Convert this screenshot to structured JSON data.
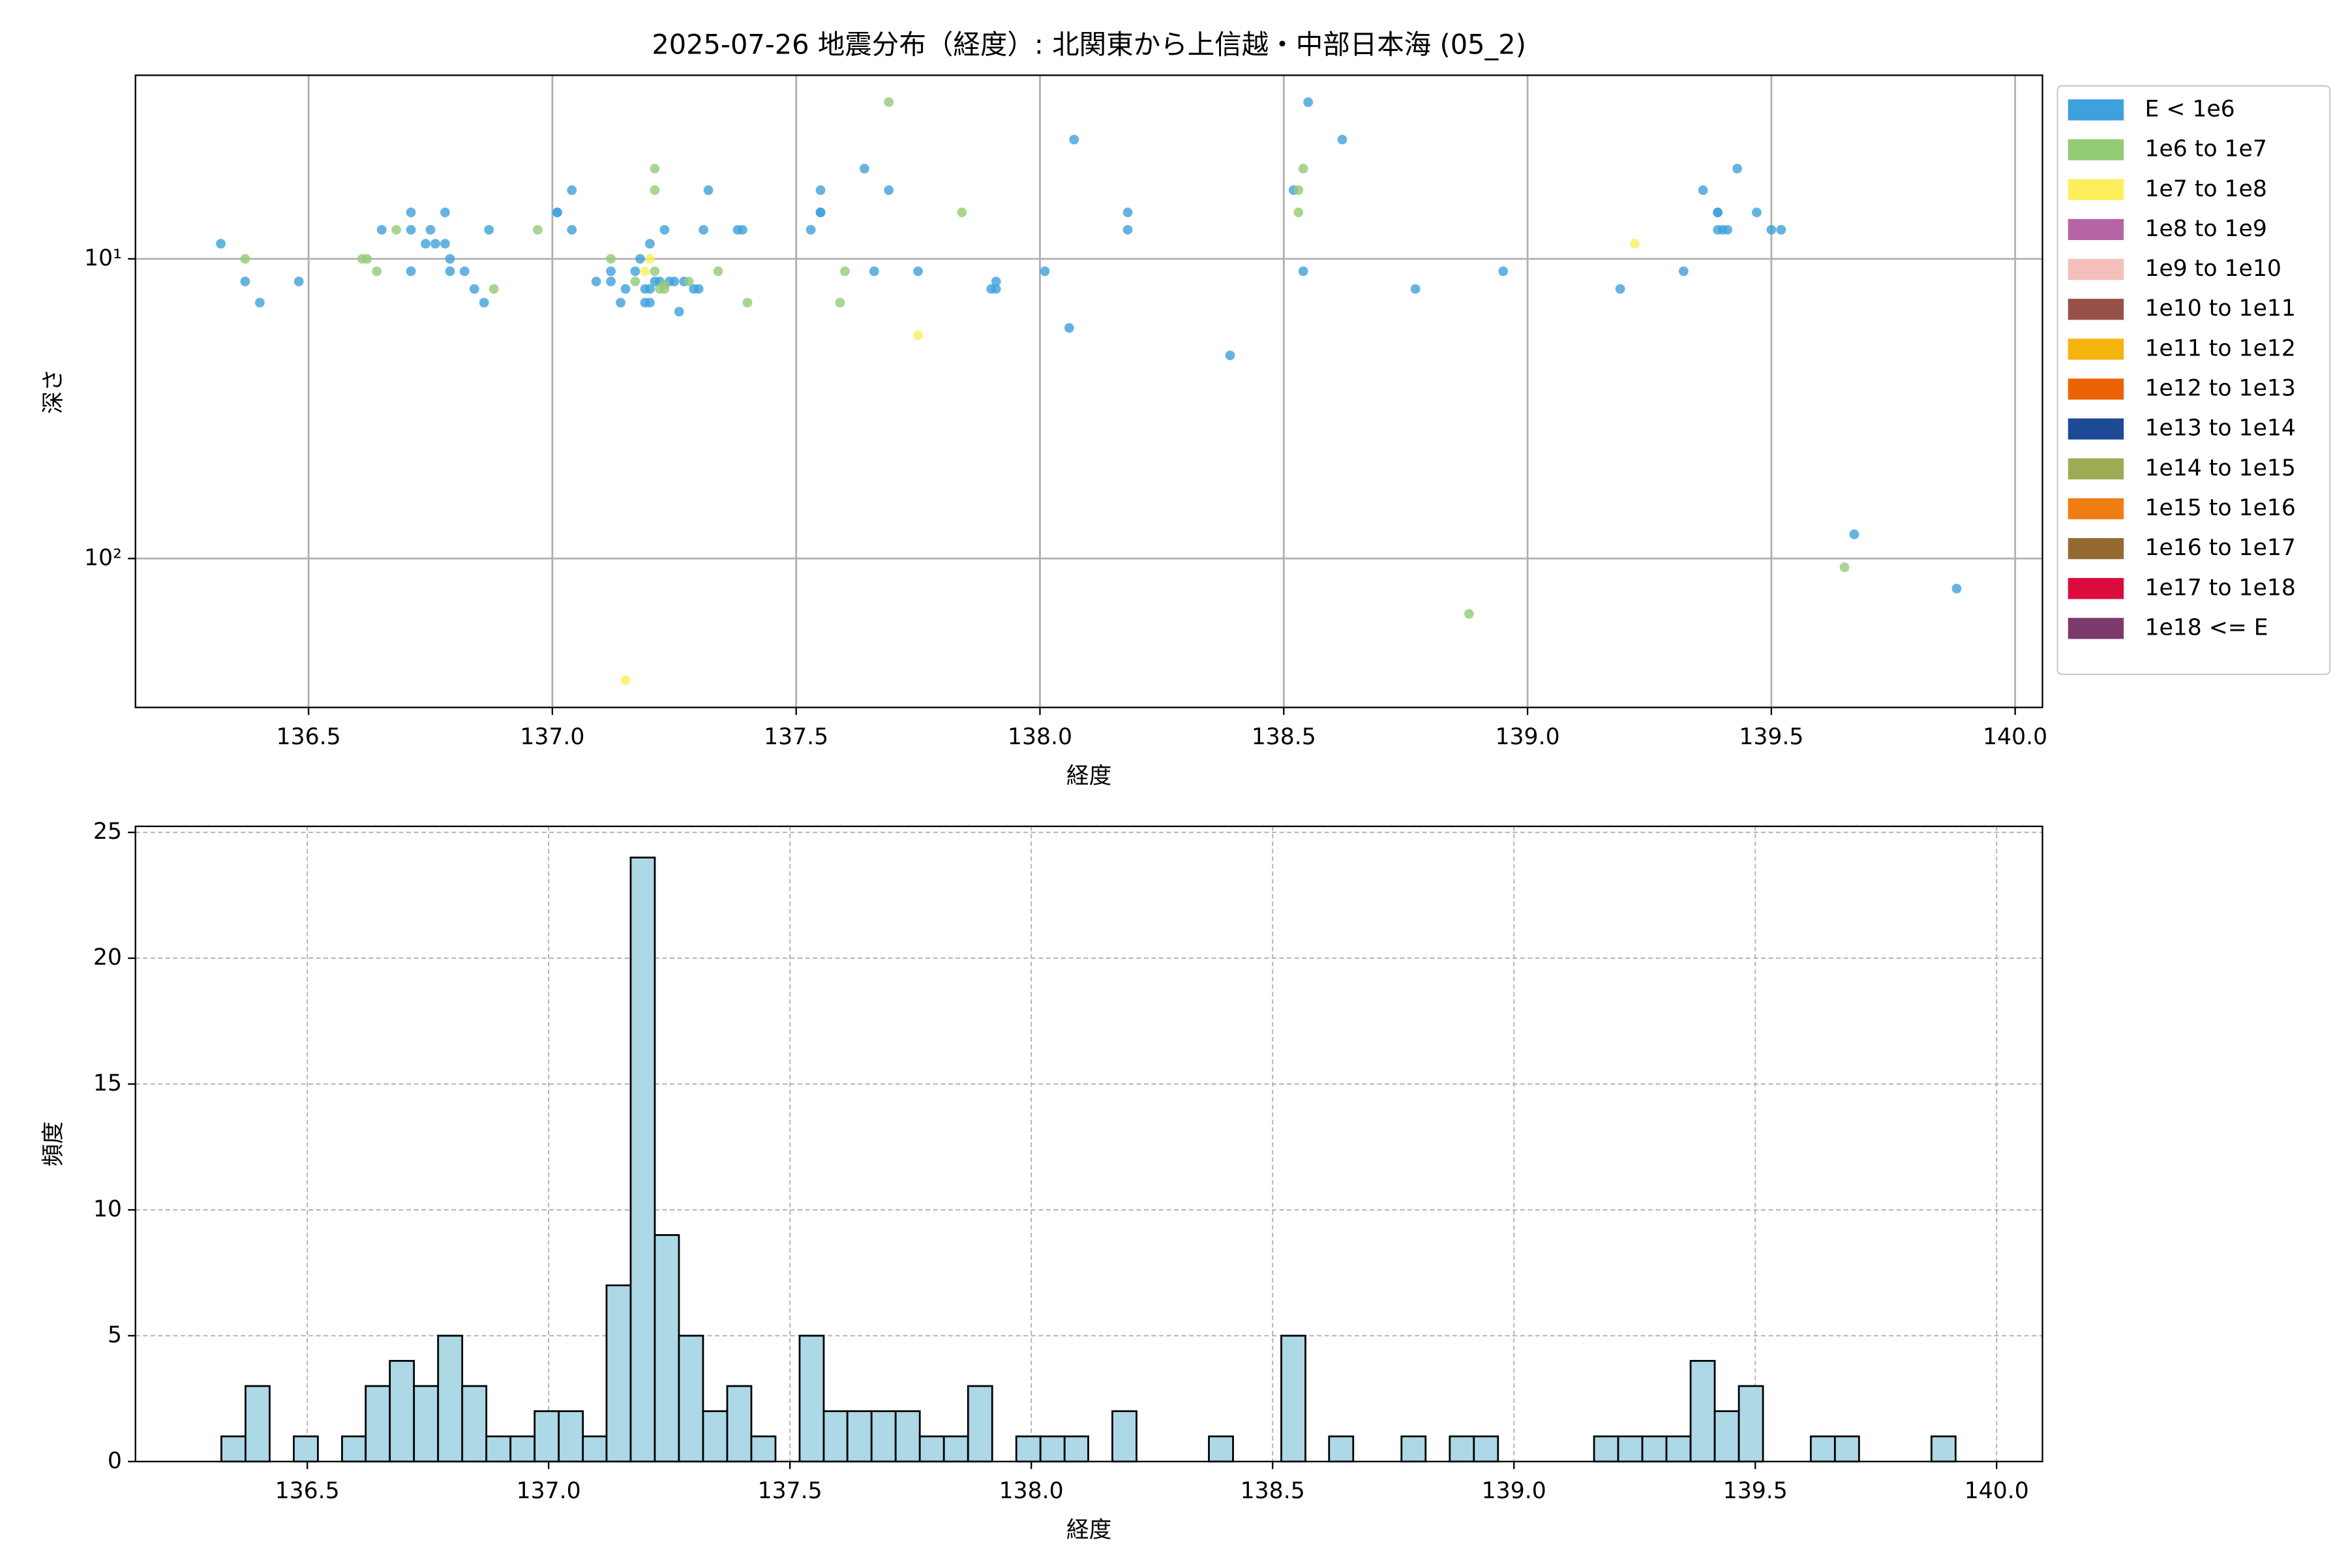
{
  "chart_data": [
    {
      "type": "scatter",
      "title": "2025-07-26 地震分布（経度）: 北関東から上信越・中部日本海 (05_2)",
      "x_label": "経度",
      "y_label": "深さ",
      "xlim": [
        136.145,
        140.056
      ],
      "xticks": [
        136.5,
        {
          "value": 137,
          "label": "137.0"
        },
        137.5,
        {
          "value": 138,
          "label": "138.0"
        },
        138.5,
        {
          "value": 139,
          "label": "139.0"
        },
        139.5,
        {
          "value": 140,
          "label": "140.0"
        }
      ],
      "ylim": [
        2.44,
        314
      ],
      "y_log": true,
      "y_inverted": true,
      "yticks": [
        {
          "value": 10,
          "label": "10¹"
        },
        {
          "value": 100,
          "label": "10²"
        }
      ],
      "grid": true,
      "legend": "outside right",
      "series": [
        {
          "name": "E < 1e6",
          "color": "#3ea0dc",
          "x": [
            136.32,
            136.37,
            136.4,
            136.48,
            136.65,
            136.71,
            136.71,
            136.71,
            136.74,
            136.75,
            136.76,
            136.78,
            136.78,
            136.79,
            136.79,
            136.82,
            136.84,
            136.86,
            136.87,
            137.01,
            137.01,
            137.04,
            137.04,
            137.09,
            137.12,
            137.12,
            137.14,
            137.15,
            137.17,
            137.18,
            137.19,
            137.19,
            137.2,
            137.2,
            137.2,
            137.21,
            137.22,
            137.24,
            137.25,
            137.23,
            137.26,
            137.27,
            137.29,
            137.3,
            137.31,
            137.32,
            137.38,
            137.39,
            137.53,
            137.55,
            137.55,
            137.55,
            137.64,
            137.66,
            137.69,
            137.75,
            137.9,
            137.91,
            137.91,
            138.01,
            138.06,
            138.07,
            138.18,
            138.18,
            138.39,
            138.52,
            138.54,
            138.55,
            138.62,
            138.77,
            138.95,
            139.19,
            139.32,
            139.36,
            139.39,
            139.39,
            139.39,
            139.4,
            139.41,
            139.43,
            139.47,
            139.5,
            139.52,
            139.67,
            139.88
          ],
          "values": [
            8.9,
            11.9,
            14,
            11.9,
            8,
            7,
            8,
            11,
            8.9,
            8,
            8.9,
            7,
            8.9,
            11,
            10,
            11,
            12.6,
            14,
            8,
            7,
            7,
            5.9,
            8,
            11.9,
            11,
            11.9,
            14,
            12.6,
            11,
            10,
            12.6,
            14,
            12.6,
            14,
            8.9,
            11.9,
            11.9,
            11.9,
            11.9,
            8,
            15,
            11.9,
            12.6,
            12.6,
            8,
            5.9,
            8,
            8,
            8,
            7,
            5.9,
            7,
            5,
            11,
            5.9,
            11,
            12.6,
            11.9,
            12.6,
            11,
            17,
            4,
            7,
            8,
            21,
            5.9,
            11,
            3,
            4,
            12.6,
            11,
            12.6,
            11,
            5.9,
            7,
            7,
            8,
            8,
            8,
            5,
            7,
            8,
            8,
            83,
            126
          ]
        },
        {
          "name": "1e6 to 1e7",
          "color": "#92cc74",
          "x": [
            136.37,
            136.61,
            136.62,
            136.64,
            136.68,
            136.88,
            136.97,
            137.12,
            137.17,
            137.21,
            137.21,
            137.21,
            137.22,
            137.23,
            137.23,
            137.28,
            137.34,
            137.4,
            137.59,
            137.6,
            137.69,
            137.84,
            138.53,
            138.53,
            138.54,
            138.88,
            139.65
          ],
          "values": [
            10,
            10,
            10,
            11,
            8,
            12.6,
            8,
            10,
            11.9,
            5,
            5.9,
            11,
            12.6,
            12.6,
            12.2,
            11.9,
            11,
            14,
            14,
            11,
            3,
            7,
            5.9,
            7,
            5,
            153,
            107
          ]
        },
        {
          "name": "1e7 to 1e8",
          "color": "#fdee5c",
          "x": [
            137.15,
            137.19,
            137.2,
            137.75,
            139.22
          ],
          "values": [
            255,
            11,
            10,
            18,
            8.9
          ]
        },
        {
          "name": "1e8 to 1e9",
          "color": "#b565a6",
          "x": [],
          "values": []
        },
        {
          "name": "1e9 to 1e10",
          "color": "#f4bfbb",
          "x": [],
          "values": []
        },
        {
          "name": "1e10 to 1e11",
          "color": "#975148",
          "x": [],
          "values": []
        },
        {
          "name": "1e11 to 1e12",
          "color": "#f6b40e",
          "x": [],
          "values": []
        },
        {
          "name": "1e12 to 1e13",
          "color": "#ec6306",
          "x": [],
          "values": []
        },
        {
          "name": "1e13 to 1e14",
          "color": "#1d4a94",
          "x": [],
          "values": []
        },
        {
          "name": "1e14 to 1e15",
          "color": "#9eab54",
          "x": [],
          "values": []
        },
        {
          "name": "1e15 to 1e16",
          "color": "#f07d13",
          "x": [],
          "values": []
        },
        {
          "name": "1e16 to 1e17",
          "color": "#946a30",
          "x": [],
          "values": []
        },
        {
          "name": "1e17 to 1e18",
          "color": "#db0b3e",
          "x": [],
          "values": []
        },
        {
          "name": "1e18 <= E",
          "color": "#7b3a6c",
          "x": [],
          "values": []
        }
      ]
    },
    {
      "type": "histogram",
      "x_label": "経度",
      "y_label": "頻度",
      "color": "#add8e6",
      "xlim": [
        136.144,
        140.095
      ],
      "xticks": [
        136.5,
        {
          "value": 137,
          "label": "137.0"
        },
        137.5,
        {
          "value": 138,
          "label": "138.0"
        },
        138.5,
        {
          "value": 139,
          "label": "139.0"
        },
        139.5,
        {
          "value": 140,
          "label": "140.0"
        }
      ],
      "ylim": [
        0,
        25.24
      ],
      "yticks": [
        0,
        5,
        10,
        15,
        20,
        25
      ],
      "grid": true,
      "bins": [
        136.322,
        136.372,
        136.422,
        136.472,
        136.522,
        136.572,
        136.621,
        136.671,
        136.721,
        136.771,
        136.821,
        136.871,
        136.921,
        136.971,
        137.021,
        137.071,
        137.12,
        137.17,
        137.22,
        137.27,
        137.32,
        137.37,
        137.42,
        137.47,
        137.52,
        137.57,
        137.619,
        137.669,
        137.719,
        137.769,
        137.819,
        137.869,
        137.919,
        137.969,
        138.019,
        138.069,
        138.118,
        138.168,
        138.218,
        138.268,
        138.318,
        138.368,
        138.418,
        138.468,
        138.518,
        138.568,
        138.617,
        138.667,
        138.717,
        138.767,
        138.817,
        138.867,
        138.917,
        138.967,
        139.017,
        139.067,
        139.116,
        139.166,
        139.216,
        139.266,
        139.316,
        139.366,
        139.416,
        139.466,
        139.516,
        139.566,
        139.615,
        139.665,
        139.715,
        139.765,
        139.815,
        139.865,
        139.915
      ],
      "counts": [
        1,
        3,
        0,
        1,
        0,
        1,
        3,
        4,
        3,
        5,
        3,
        1,
        1,
        2,
        2,
        1,
        7,
        24,
        9,
        5,
        2,
        3,
        1,
        0,
        5,
        2,
        2,
        2,
        2,
        1,
        1,
        3,
        0,
        1,
        1,
        1,
        0,
        2,
        0,
        0,
        0,
        1,
        0,
        0,
        5,
        0,
        1,
        0,
        0,
        1,
        0,
        1,
        1,
        0,
        0,
        0,
        0,
        1,
        1,
        1,
        1,
        4,
        2,
        3,
        0,
        0,
        1,
        1,
        0,
        0,
        0,
        1
      ]
    }
  ]
}
